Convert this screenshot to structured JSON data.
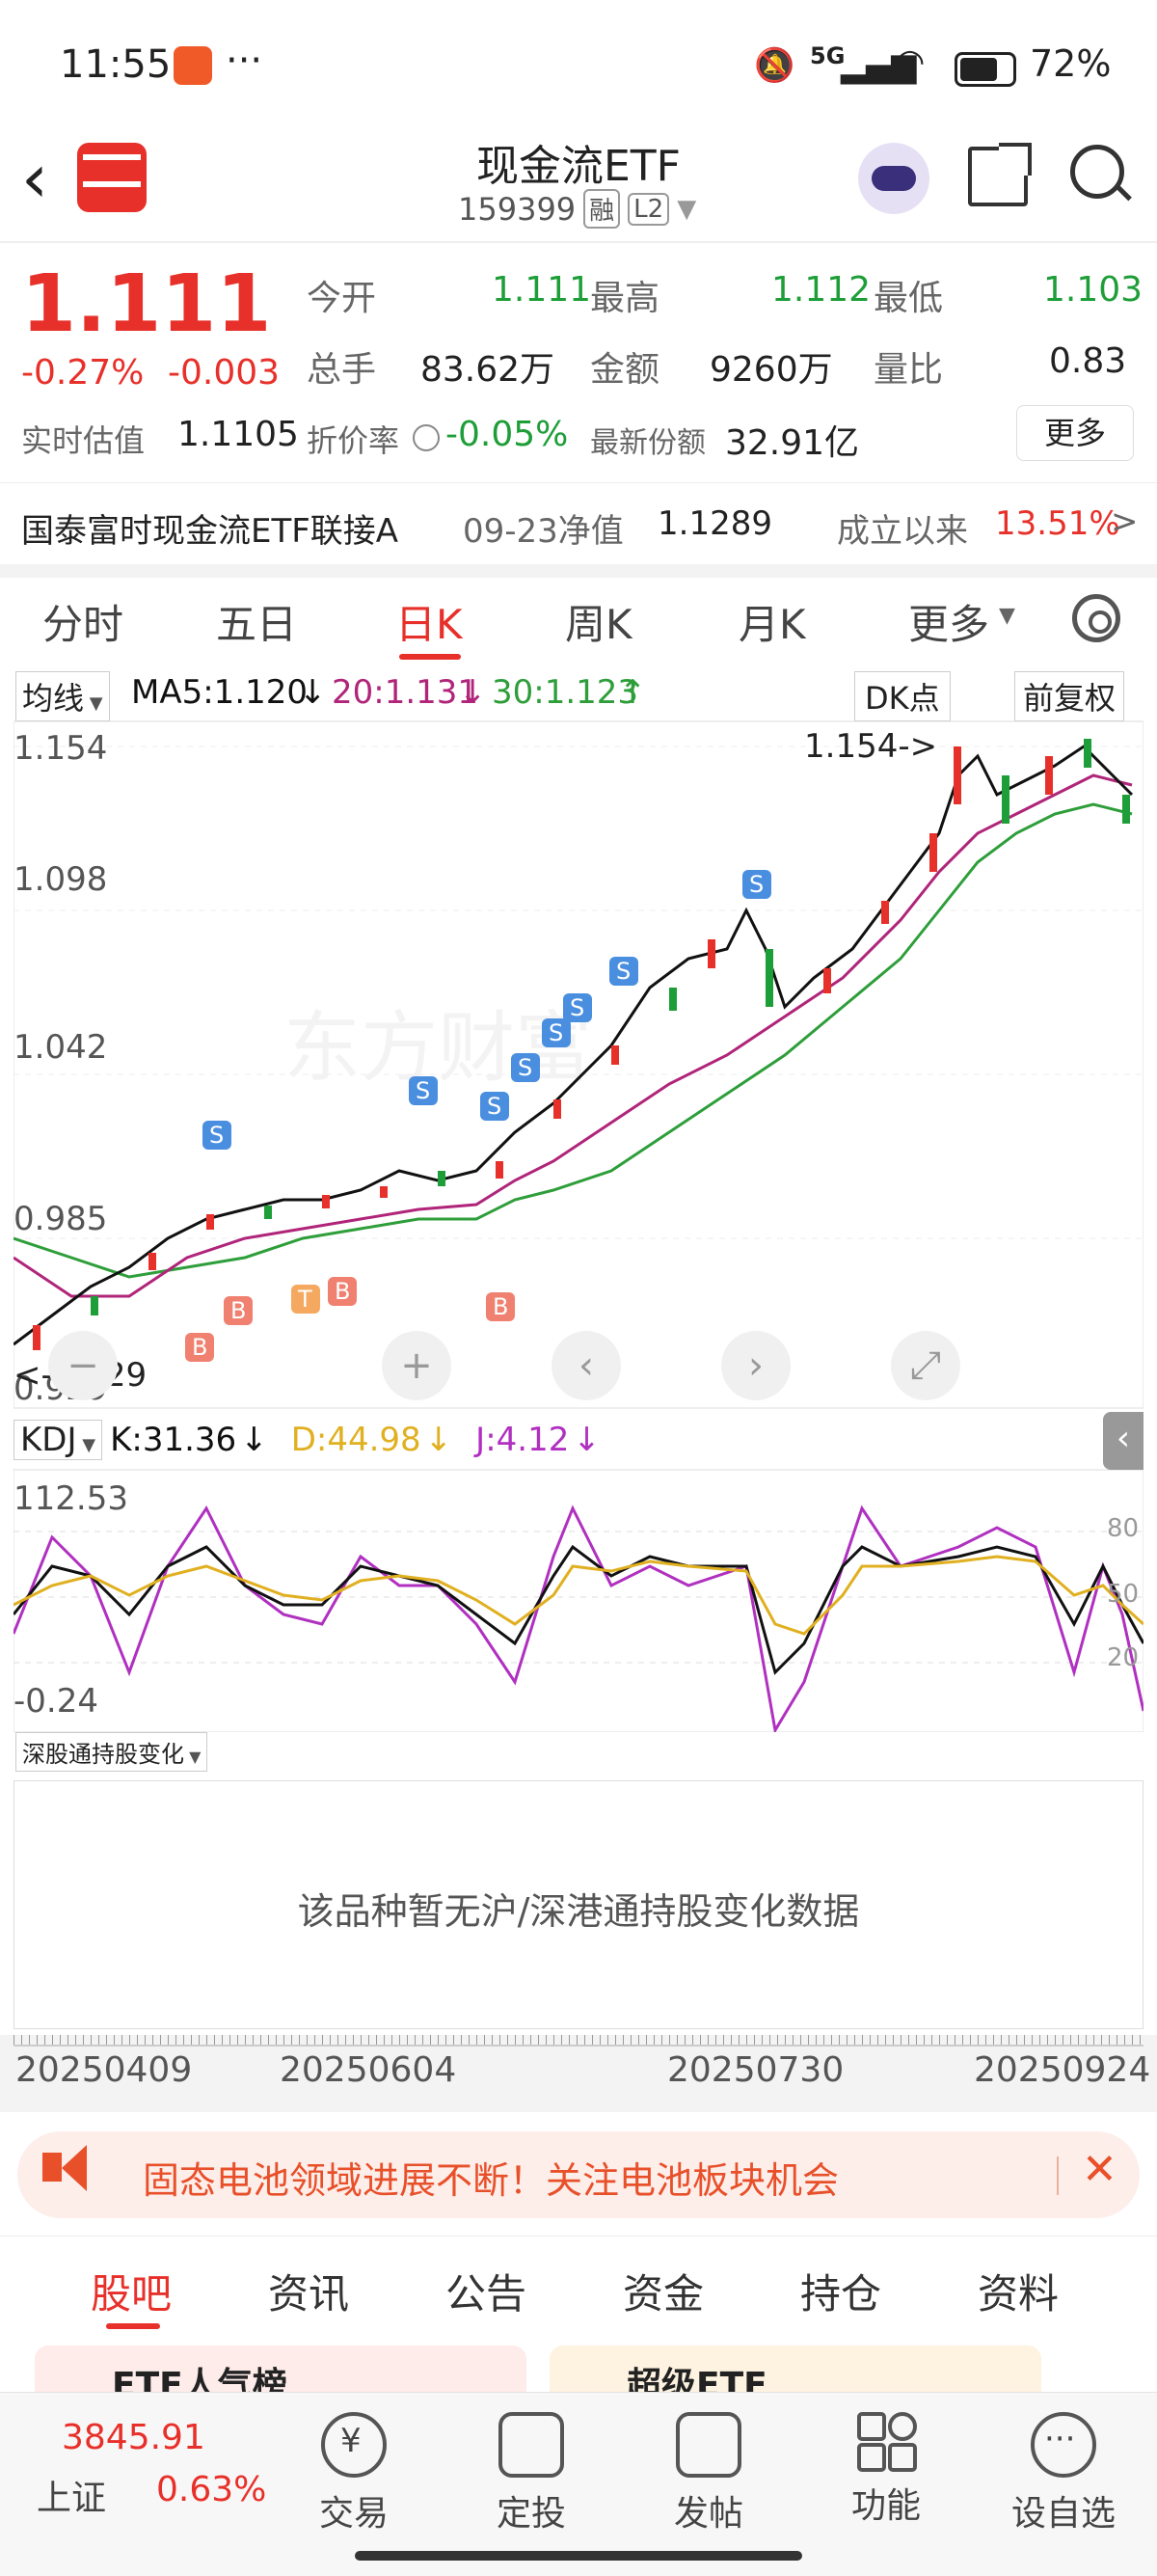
{
  "status": {
    "time": "11:55",
    "dots": "···",
    "network": "5G",
    "battery": "72%"
  },
  "header": {
    "title": "现金流ETF",
    "code": "159399",
    "tag_rong": "融",
    "tag_l2": "L2"
  },
  "quote": {
    "price": "1.111",
    "change_pct": "-0.27%",
    "change": "-0.003",
    "open_label": "今开",
    "open": "1.111",
    "high_label": "最高",
    "high": "1.112",
    "low_label": "最低",
    "low": "1.103",
    "volume_label": "总手",
    "volume": "83.62万",
    "amount_label": "金额",
    "amount": "9260万",
    "ratio_label": "量比",
    "ratio": "0.83",
    "est_label": "实时估值",
    "est": "1.1105",
    "discount_label": "折价率",
    "discount": "-0.05%",
    "shares_label": "最新份额",
    "shares": "32.91亿",
    "more": "更多"
  },
  "fund": {
    "name": "国泰富时现金流ETF联接A",
    "nav_label": "09-23净值",
    "nav": "1.1289",
    "since_label": "成立以来",
    "since": "13.51%",
    "arrow": ">"
  },
  "tabs": [
    "分时",
    "五日",
    "日K",
    "周K",
    "月K",
    "更多"
  ],
  "ma": {
    "type": "均线",
    "ma5": "MA5:1.120",
    "ma20": "20:1.131",
    "ma30": "30:1.123",
    "dk": "DK点",
    "adj": "前复权"
  },
  "kchart": {
    "y1": "1.154",
    "y2": "1.098",
    "y3": "1.042",
    "y4": "0.985",
    "y5": "0.929",
    "high_label": "1.154->",
    "low_label": "<-0.929",
    "watermark": "东方财富"
  },
  "kdj": {
    "label": "KDJ",
    "k": "K:31.36",
    "d": "D:44.98",
    "j": "J:4.12",
    "top": "112.53",
    "bottom": "-0.24",
    "l80": "80",
    "l50": "50",
    "l20": "20"
  },
  "hold": {
    "select": "深股通持股变化",
    "empty": "该品种暂无沪/深港通持股变化数据"
  },
  "dates": [
    "20250409",
    "20250604",
    "20250730",
    "20250924"
  ],
  "banner": {
    "text": "固态电池领域进展不断！关注电池板块机会"
  },
  "bottom_tabs": [
    "股吧",
    "资讯",
    "公告",
    "资金",
    "持仓",
    "资料"
  ],
  "cards": {
    "c1": "ETF人气榜",
    "c2": "超级ETF"
  },
  "nav": {
    "index_value": "3845.91",
    "index_name": "上证",
    "index_pct": "0.63%",
    "trade": "交易",
    "plan": "定投",
    "post": "发帖",
    "func": "功能",
    "watch": "设自选"
  },
  "colors": {
    "up": "#e8302a",
    "down": "#1e9e38",
    "ma5": "#111111",
    "ma20": "#b0247a",
    "ma30": "#2e9e3a",
    "k": "#111111",
    "d": "#e0b020",
    "j": "#b030c0"
  }
}
